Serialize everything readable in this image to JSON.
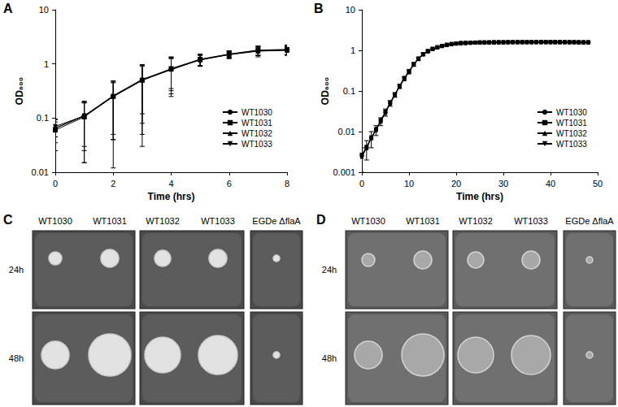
{
  "chart_data": [
    {
      "type": "line",
      "title": "A",
      "x_label": "Time (hrs)",
      "y_label": "OD₆₀₀",
      "x": [
        0,
        1,
        2,
        3,
        4,
        5,
        6,
        7,
        8
      ],
      "xlim": [
        0,
        8
      ],
      "xticks": [
        0,
        2,
        4,
        6,
        8
      ],
      "ylim": [
        0.01,
        10
      ],
      "yticks": [
        0.01,
        0.1,
        1,
        10
      ],
      "log": "y",
      "grid": false,
      "legend": "lower right",
      "series": [
        {
          "name": "WT1030",
          "color": "#000000",
          "marker": "circle",
          "values": [
            0.065,
            0.11,
            0.25,
            0.5,
            0.8,
            1.2,
            1.5,
            1.75,
            1.8
          ],
          "error": [
            0.03,
            0.095,
            0.238,
            0.47,
            0.55,
            0.3,
            0.25,
            0.4,
            0.35
          ]
        },
        {
          "name": "WT1031",
          "color": "#000000",
          "marker": "square",
          "values": [
            0.06,
            0.105,
            0.25,
            0.5,
            0.82,
            1.22,
            1.52,
            1.8,
            1.85
          ],
          "error": [
            0.035,
            0.09,
            0.2,
            0.45,
            0.5,
            0.3,
            0.2,
            0.35,
            0.4
          ]
        },
        {
          "name": "WT1032",
          "color": "#000000",
          "marker": "triangle",
          "values": [
            0.065,
            0.11,
            0.26,
            0.52,
            0.8,
            1.18,
            1.48,
            1.72,
            1.78
          ],
          "error": [
            0.02,
            0.08,
            0.22,
            0.4,
            0.45,
            0.25,
            0.2,
            0.3,
            0.3
          ]
        },
        {
          "name": "WT1033",
          "color": "#000000",
          "marker": "triangle-down",
          "values": [
            0.07,
            0.11,
            0.25,
            0.5,
            0.78,
            1.2,
            1.5,
            1.75,
            1.82
          ],
          "error": [
            0.025,
            0.085,
            0.21,
            0.42,
            0.5,
            0.28,
            0.22,
            0.32,
            0.33
          ]
        }
      ]
    },
    {
      "type": "line",
      "title": "B",
      "x_label": "Time (hrs)",
      "y_label": "OD₆₀₀",
      "x": [
        0,
        1,
        2,
        3,
        4,
        5,
        6,
        7,
        8,
        9,
        10,
        11,
        12,
        13,
        14,
        15,
        16,
        17,
        18,
        19,
        20,
        21,
        22,
        23,
        24,
        25,
        26,
        27,
        28,
        29,
        30,
        31,
        32,
        33,
        34,
        35,
        36,
        37,
        38,
        39,
        40,
        41,
        42,
        43,
        44,
        45,
        46,
        47,
        48
      ],
      "xlim": [
        0,
        50
      ],
      "xticks": [
        0,
        10,
        20,
        30,
        40,
        50
      ],
      "ylim": [
        0.001,
        10
      ],
      "yticks": [
        0.001,
        0.01,
        0.1,
        1,
        10
      ],
      "log": "y",
      "grid": false,
      "legend": "lower right",
      "series": [
        {
          "name": "WT1030",
          "color": "#000000",
          "marker": "circle",
          "values": [
            0.0025,
            0.004,
            0.007,
            0.011,
            0.018,
            0.03,
            0.05,
            0.08,
            0.13,
            0.2,
            0.3,
            0.45,
            0.62,
            0.8,
            0.95,
            1.08,
            1.18,
            1.28,
            1.36,
            1.42,
            1.47,
            1.5,
            1.52,
            1.54,
            1.55,
            1.56,
            1.57,
            1.57,
            1.58,
            1.58,
            1.58,
            1.59,
            1.59,
            1.59,
            1.6,
            1.6,
            1.6,
            1.6,
            1.6,
            1.6,
            1.6,
            1.6,
            1.6,
            1.59,
            1.59,
            1.59,
            1.58,
            1.58,
            1.58
          ],
          "error": [
            0.0015,
            0.002,
            0.003,
            0.003,
            0.004,
            0.006,
            0.008,
            0.01,
            0.015,
            0.02,
            0.03,
            0.04,
            0.05,
            0.06,
            0.06,
            0.06,
            0.06,
            0.06,
            0.06,
            0.06,
            0.06,
            0.06,
            0.06,
            0.06,
            0.06,
            0.05,
            0.05,
            0.05,
            0.05,
            0.05,
            0.05,
            0.05,
            0.05,
            0.05,
            0.05,
            0.05,
            0.05,
            0.05,
            0.05,
            0.05,
            0.05,
            0.05,
            0.05,
            0.05,
            0.05,
            0.05,
            0.05,
            0.05,
            0.05
          ]
        },
        {
          "name": "WT1031",
          "color": "#000000",
          "marker": "square",
          "values": [
            0.0027,
            0.0042,
            0.0072,
            0.0115,
            0.019,
            0.031,
            0.052,
            0.083,
            0.135,
            0.21,
            0.31,
            0.46,
            0.63,
            0.81,
            0.96,
            1.09,
            1.19,
            1.29,
            1.37,
            1.43,
            1.48,
            1.51,
            1.53,
            1.55,
            1.56,
            1.57,
            1.57,
            1.58,
            1.58,
            1.59,
            1.59,
            1.59,
            1.6,
            1.6,
            1.6,
            1.6,
            1.6,
            1.61,
            1.61,
            1.61,
            1.6,
            1.6,
            1.6,
            1.6,
            1.59,
            1.59,
            1.59,
            1.58,
            1.58
          ]
        },
        {
          "name": "WT1032",
          "color": "#000000",
          "marker": "triangle",
          "values": [
            0.0024,
            0.0039,
            0.0068,
            0.0108,
            0.0175,
            0.029,
            0.049,
            0.078,
            0.128,
            0.195,
            0.29,
            0.44,
            0.61,
            0.79,
            0.94,
            1.07,
            1.17,
            1.27,
            1.35,
            1.41,
            1.46,
            1.49,
            1.51,
            1.53,
            1.54,
            1.55,
            1.56,
            1.56,
            1.57,
            1.57,
            1.57,
            1.58,
            1.58,
            1.58,
            1.59,
            1.59,
            1.59,
            1.59,
            1.59,
            1.59,
            1.59,
            1.59,
            1.59,
            1.58,
            1.58,
            1.58,
            1.57,
            1.57,
            1.57
          ]
        },
        {
          "name": "WT1033",
          "color": "#000000",
          "marker": "triangle-down",
          "values": [
            0.0026,
            0.0041,
            0.0071,
            0.0112,
            0.0185,
            0.0305,
            0.051,
            0.081,
            0.132,
            0.205,
            0.305,
            0.455,
            0.625,
            0.805,
            0.955,
            1.085,
            1.185,
            1.285,
            1.365,
            1.425,
            1.475,
            1.505,
            1.525,
            1.545,
            1.555,
            1.565,
            1.575,
            1.575,
            1.585,
            1.585,
            1.585,
            1.595,
            1.595,
            1.595,
            1.605,
            1.605,
            1.605,
            1.605,
            1.605,
            1.605,
            1.605,
            1.605,
            1.605,
            1.595,
            1.595,
            1.595,
            1.585,
            1.585,
            1.585
          ]
        }
      ]
    }
  ],
  "photos": [
    {
      "title": "C",
      "columns": [
        "WT1030",
        "WT1031",
        "WT1032",
        "WT1033",
        "EGDe ΔflaA"
      ],
      "rows": [
        "24h",
        "48h"
      ]
    },
    {
      "title": "D",
      "columns": [
        "WT1030",
        "WT1031",
        "WT1032",
        "WT1033",
        "EGDe ΔflaA"
      ],
      "rows": [
        "24h",
        "48h"
      ]
    }
  ]
}
